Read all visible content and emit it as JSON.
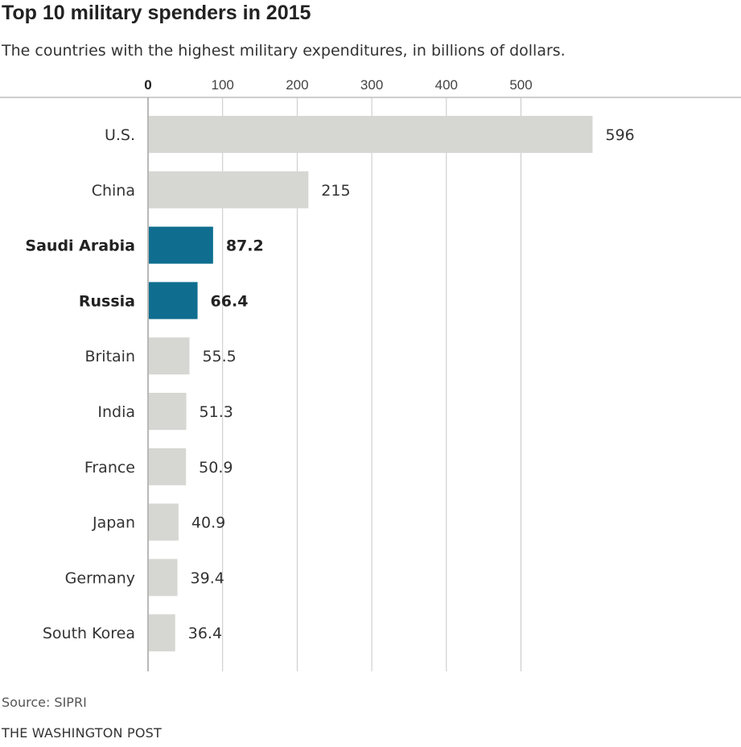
{
  "chart_data": {
    "type": "bar",
    "orientation": "horizontal",
    "title": "Top 10 military spenders in 2015",
    "subtitle": "The countries with the highest military expenditures, in billions of dollars.",
    "categories": [
      "U.S.",
      "China",
      "Saudi Arabia",
      "Russia",
      "Britain",
      "India",
      "France",
      "Japan",
      "Germany",
      "South Korea"
    ],
    "values": [
      596,
      215,
      87.2,
      66.4,
      55.5,
      51.3,
      50.9,
      40.9,
      39.4,
      36.4
    ],
    "value_labels": [
      "596",
      "215",
      "87.2",
      "66.4",
      "55.5",
      "51.3",
      "50.9",
      "40.9",
      "39.4",
      "36.4"
    ],
    "highlighted": [
      "Saudi Arabia",
      "Russia"
    ],
    "xticks": [
      0,
      100,
      200,
      300,
      400,
      500
    ],
    "xlim": [
      0,
      600
    ],
    "grid": true,
    "axis_position": "top",
    "colors": {
      "default_bar": "#d6d6d2",
      "highlight_bar": "#0f6e8f",
      "grid": "#c8c8c8"
    }
  },
  "footer": {
    "source": "Source: SIPRI",
    "credit": "THE WASHINGTON POST"
  }
}
